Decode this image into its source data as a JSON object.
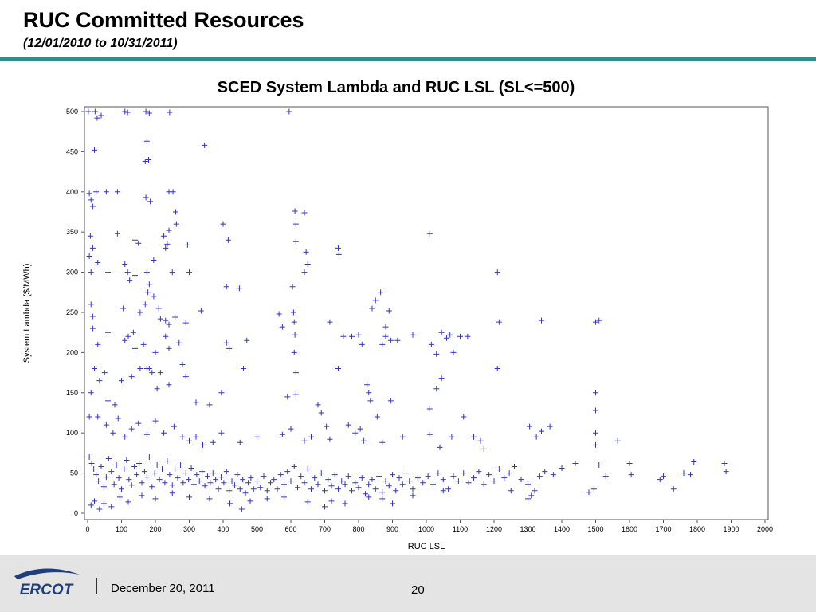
{
  "slide": {
    "title": "RUC Committed Resources",
    "subtitle": "(12/01/2010 to 10/31/2011)"
  },
  "footer": {
    "logo_text": "ERCOT",
    "date": "December 20, 2011",
    "page_number": "20"
  },
  "colors": {
    "title_rule": "#2e8f8c",
    "marker": "#3333cc",
    "footer_bg": "#e4e4e4",
    "logo_blue": "#1f3e7a"
  },
  "chart_data": {
    "type": "scatter",
    "title": "SCED System Lambda and RUC LSL (SL<=500)",
    "xlabel": "RUC LSL",
    "ylabel": "System Lambda ($/MWh)",
    "xlim": [
      0,
      2000
    ],
    "ylim": [
      0,
      500
    ],
    "xticks": [
      0,
      100,
      200,
      300,
      400,
      500,
      600,
      700,
      800,
      900,
      1000,
      1100,
      1200,
      1300,
      1400,
      1500,
      1600,
      1700,
      1800,
      1900,
      2000
    ],
    "yticks": [
      0,
      50,
      100,
      150,
      200,
      250,
      300,
      350,
      400,
      450,
      500
    ],
    "marker": "plus",
    "grid": false,
    "points": [
      [
        2,
        500
      ],
      [
        22,
        500
      ],
      [
        28,
        492
      ],
      [
        40,
        495
      ],
      [
        110,
        500
      ],
      [
        118,
        499
      ],
      [
        172,
        500
      ],
      [
        182,
        498
      ],
      [
        242,
        499
      ],
      [
        595,
        500
      ],
      [
        20,
        452
      ],
      [
        175,
        463
      ],
      [
        170,
        438
      ],
      [
        180,
        440
      ],
      [
        345,
        458
      ],
      [
        5,
        398
      ],
      [
        10,
        390
      ],
      [
        15,
        382
      ],
      [
        25,
        400
      ],
      [
        55,
        400
      ],
      [
        88,
        400
      ],
      [
        172,
        393
      ],
      [
        185,
        388
      ],
      [
        240,
        400
      ],
      [
        252,
        400
      ],
      [
        612,
        376
      ],
      [
        640,
        374
      ],
      [
        615,
        360
      ],
      [
        260,
        375
      ],
      [
        262,
        360
      ],
      [
        400,
        360
      ],
      [
        240,
        352
      ],
      [
        8,
        345
      ],
      [
        15,
        330
      ],
      [
        88,
        348
      ],
      [
        140,
        340
      ],
      [
        150,
        336
      ],
      [
        225,
        345
      ],
      [
        230,
        330
      ],
      [
        295,
        334
      ],
      [
        415,
        340
      ],
      [
        1010,
        348
      ],
      [
        5,
        320
      ],
      [
        10,
        300
      ],
      [
        30,
        312
      ],
      [
        60,
        300
      ],
      [
        110,
        310
      ],
      [
        118,
        300
      ],
      [
        124,
        290
      ],
      [
        140,
        296
      ],
      [
        175,
        300
      ],
      [
        182,
        285
      ],
      [
        195,
        315
      ],
      [
        235,
        335
      ],
      [
        250,
        300
      ],
      [
        300,
        300
      ],
      [
        410,
        282
      ],
      [
        448,
        280
      ],
      [
        605,
        282
      ],
      [
        615,
        338
      ],
      [
        645,
        325
      ],
      [
        650,
        310
      ],
      [
        740,
        330
      ],
      [
        742,
        322
      ],
      [
        640,
        300
      ],
      [
        1210,
        300
      ],
      [
        10,
        260
      ],
      [
        15,
        245
      ],
      [
        105,
        255
      ],
      [
        155,
        250
      ],
      [
        170,
        260
      ],
      [
        178,
        275
      ],
      [
        195,
        270
      ],
      [
        210,
        255
      ],
      [
        215,
        242
      ],
      [
        230,
        240
      ],
      [
        240,
        235
      ],
      [
        258,
        244
      ],
      [
        290,
        237
      ],
      [
        335,
        252
      ],
      [
        565,
        248
      ],
      [
        610,
        238
      ],
      [
        608,
        250
      ],
      [
        612,
        222
      ],
      [
        715,
        238
      ],
      [
        840,
        255
      ],
      [
        850,
        265
      ],
      [
        865,
        275
      ],
      [
        880,
        232
      ],
      [
        890,
        252
      ],
      [
        895,
        215
      ],
      [
        1045,
        225
      ],
      [
        1122,
        220
      ],
      [
        1215,
        238
      ],
      [
        1340,
        240
      ],
      [
        1500,
        238
      ],
      [
        1510,
        240
      ],
      [
        15,
        230
      ],
      [
        30,
        210
      ],
      [
        60,
        225
      ],
      [
        110,
        215
      ],
      [
        120,
        220
      ],
      [
        135,
        225
      ],
      [
        140,
        205
      ],
      [
        165,
        210
      ],
      [
        175,
        180
      ],
      [
        182,
        180
      ],
      [
        200,
        200
      ],
      [
        215,
        175
      ],
      [
        230,
        220
      ],
      [
        240,
        205
      ],
      [
        270,
        212
      ],
      [
        280,
        185
      ],
      [
        410,
        212
      ],
      [
        418,
        205
      ],
      [
        460,
        180
      ],
      [
        470,
        215
      ],
      [
        575,
        232
      ],
      [
        610,
        200
      ],
      [
        615,
        175
      ],
      [
        740,
        180
      ],
      [
        755,
        220
      ],
      [
        780,
        220
      ],
      [
        800,
        222
      ],
      [
        810,
        210
      ],
      [
        870,
        210
      ],
      [
        880,
        220
      ],
      [
        915,
        215
      ],
      [
        960,
        222
      ],
      [
        1015,
        210
      ],
      [
        1030,
        198
      ],
      [
        1045,
        168
      ],
      [
        1060,
        218
      ],
      [
        1070,
        222
      ],
      [
        1080,
        200
      ],
      [
        1100,
        220
      ],
      [
        1210,
        180
      ],
      [
        10,
        150
      ],
      [
        20,
        180
      ],
      [
        35,
        165
      ],
      [
        50,
        175
      ],
      [
        60,
        140
      ],
      [
        80,
        135
      ],
      [
        100,
        165
      ],
      [
        130,
        170
      ],
      [
        155,
        180
      ],
      [
        190,
        175
      ],
      [
        205,
        155
      ],
      [
        240,
        160
      ],
      [
        290,
        170
      ],
      [
        320,
        138
      ],
      [
        360,
        135
      ],
      [
        395,
        150
      ],
      [
        590,
        145
      ],
      [
        615,
        148
      ],
      [
        680,
        135
      ],
      [
        690,
        125
      ],
      [
        825,
        160
      ],
      [
        830,
        150
      ],
      [
        835,
        140
      ],
      [
        855,
        120
      ],
      [
        895,
        140
      ],
      [
        1010,
        130
      ],
      [
        1030,
        155
      ],
      [
        1110,
        120
      ],
      [
        1500,
        150
      ],
      [
        1500,
        128
      ],
      [
        5,
        120
      ],
      [
        30,
        120
      ],
      [
        55,
        110
      ],
      [
        75,
        100
      ],
      [
        90,
        118
      ],
      [
        110,
        95
      ],
      [
        130,
        105
      ],
      [
        150,
        112
      ],
      [
        175,
        98
      ],
      [
        200,
        115
      ],
      [
        225,
        100
      ],
      [
        255,
        108
      ],
      [
        280,
        95
      ],
      [
        300,
        90
      ],
      [
        320,
        95
      ],
      [
        340,
        85
      ],
      [
        370,
        88
      ],
      [
        395,
        100
      ],
      [
        450,
        88
      ],
      [
        500,
        95
      ],
      [
        575,
        98
      ],
      [
        600,
        105
      ],
      [
        640,
        90
      ],
      [
        660,
        95
      ],
      [
        705,
        108
      ],
      [
        715,
        92
      ],
      [
        770,
        110
      ],
      [
        790,
        100
      ],
      [
        805,
        105
      ],
      [
        815,
        90
      ],
      [
        870,
        88
      ],
      [
        930,
        95
      ],
      [
        1010,
        98
      ],
      [
        1040,
        82
      ],
      [
        1075,
        95
      ],
      [
        1140,
        95
      ],
      [
        1160,
        90
      ],
      [
        1170,
        80
      ],
      [
        1305,
        108
      ],
      [
        1325,
        95
      ],
      [
        1340,
        102
      ],
      [
        1365,
        108
      ],
      [
        1500,
        100
      ],
      [
        1500,
        85
      ],
      [
        1565,
        90
      ],
      [
        5,
        70
      ],
      [
        12,
        62
      ],
      [
        18,
        55
      ],
      [
        25,
        48
      ],
      [
        32,
        40
      ],
      [
        40,
        58
      ],
      [
        48,
        33
      ],
      [
        55,
        45
      ],
      [
        62,
        68
      ],
      [
        70,
        52
      ],
      [
        78,
        36
      ],
      [
        85,
        60
      ],
      [
        92,
        44
      ],
      [
        100,
        30
      ],
      [
        108,
        55
      ],
      [
        115,
        66
      ],
      [
        122,
        42
      ],
      [
        130,
        35
      ],
      [
        138,
        58
      ],
      [
        145,
        48
      ],
      [
        152,
        62
      ],
      [
        160,
        38
      ],
      [
        168,
        52
      ],
      [
        175,
        45
      ],
      [
        182,
        70
      ],
      [
        190,
        33
      ],
      [
        198,
        50
      ],
      [
        205,
        60
      ],
      [
        212,
        42
      ],
      [
        220,
        55
      ],
      [
        228,
        38
      ],
      [
        235,
        65
      ],
      [
        242,
        48
      ],
      [
        250,
        35
      ],
      [
        258,
        55
      ],
      [
        266,
        44
      ],
      [
        274,
        60
      ],
      [
        282,
        38
      ],
      [
        290,
        50
      ],
      [
        298,
        42
      ],
      [
        306,
        56
      ],
      [
        314,
        36
      ],
      [
        322,
        48
      ],
      [
        330,
        40
      ],
      [
        338,
        52
      ],
      [
        346,
        34
      ],
      [
        354,
        46
      ],
      [
        362,
        38
      ],
      [
        370,
        50
      ],
      [
        378,
        42
      ],
      [
        386,
        30
      ],
      [
        394,
        45
      ],
      [
        402,
        38
      ],
      [
        410,
        52
      ],
      [
        418,
        28
      ],
      [
        426,
        40
      ],
      [
        434,
        35
      ],
      [
        442,
        48
      ],
      [
        450,
        30
      ],
      [
        458,
        42
      ],
      [
        466,
        25
      ],
      [
        474,
        38
      ],
      [
        482,
        44
      ],
      [
        490,
        30
      ],
      [
        500,
        40
      ],
      [
        510,
        32
      ],
      [
        520,
        46
      ],
      [
        530,
        28
      ],
      [
        540,
        38
      ],
      [
        550,
        42
      ],
      [
        560,
        30
      ],
      [
        570,
        48
      ],
      [
        580,
        36
      ],
      [
        590,
        52
      ],
      [
        600,
        40
      ],
      [
        610,
        58
      ],
      [
        620,
        32
      ],
      [
        630,
        46
      ],
      [
        640,
        38
      ],
      [
        650,
        55
      ],
      [
        660,
        30
      ],
      [
        670,
        44
      ],
      [
        680,
        36
      ],
      [
        690,
        50
      ],
      [
        700,
        28
      ],
      [
        710,
        42
      ],
      [
        720,
        34
      ],
      [
        730,
        48
      ],
      [
        740,
        30
      ],
      [
        750,
        40
      ],
      [
        760,
        36
      ],
      [
        770,
        46
      ],
      [
        780,
        28
      ],
      [
        790,
        38
      ],
      [
        800,
        32
      ],
      [
        810,
        44
      ],
      [
        820,
        24
      ],
      [
        830,
        36
      ],
      [
        840,
        42
      ],
      [
        850,
        30
      ],
      [
        860,
        46
      ],
      [
        870,
        26
      ],
      [
        880,
        40
      ],
      [
        890,
        34
      ],
      [
        900,
        48
      ],
      [
        910,
        28
      ],
      [
        920,
        44
      ],
      [
        930,
        36
      ],
      [
        940,
        50
      ],
      [
        950,
        40
      ],
      [
        960,
        30
      ],
      [
        975,
        44
      ],
      [
        990,
        38
      ],
      [
        1005,
        46
      ],
      [
        1020,
        36
      ],
      [
        1035,
        50
      ],
      [
        1050,
        42
      ],
      [
        1065,
        30
      ],
      [
        1080,
        46
      ],
      [
        1095,
        40
      ],
      [
        1110,
        50
      ],
      [
        1125,
        38
      ],
      [
        1140,
        44
      ],
      [
        1155,
        52
      ],
      [
        1170,
        36
      ],
      [
        1185,
        48
      ],
      [
        1200,
        40
      ],
      [
        1215,
        55
      ],
      [
        1230,
        44
      ],
      [
        1245,
        50
      ],
      [
        1260,
        58
      ],
      [
        1280,
        42
      ],
      [
        1300,
        36
      ],
      [
        1320,
        28
      ],
      [
        1335,
        46
      ],
      [
        1350,
        52
      ],
      [
        1375,
        48
      ],
      [
        1400,
        56
      ],
      [
        1440,
        62
      ],
      [
        1480,
        26
      ],
      [
        1495,
        30
      ],
      [
        1510,
        60
      ],
      [
        1530,
        46
      ],
      [
        1600,
        62
      ],
      [
        1605,
        48
      ],
      [
        1690,
        42
      ],
      [
        1700,
        46
      ],
      [
        1730,
        30
      ],
      [
        1760,
        50
      ],
      [
        1780,
        48
      ],
      [
        1790,
        64
      ],
      [
        1880,
        62
      ],
      [
        1885,
        52
      ],
      [
        10,
        10
      ],
      [
        20,
        15
      ],
      [
        35,
        5
      ],
      [
        48,
        12
      ],
      [
        70,
        8
      ],
      [
        95,
        20
      ],
      [
        120,
        14
      ],
      [
        160,
        22
      ],
      [
        200,
        18
      ],
      [
        250,
        25
      ],
      [
        300,
        20
      ],
      [
        360,
        18
      ],
      [
        420,
        12
      ],
      [
        455,
        5
      ],
      [
        480,
        15
      ],
      [
        530,
        18
      ],
      [
        580,
        20
      ],
      [
        650,
        14
      ],
      [
        700,
        8
      ],
      [
        720,
        15
      ],
      [
        760,
        12
      ],
      [
        830,
        20
      ],
      [
        870,
        18
      ],
      [
        900,
        12
      ],
      [
        960,
        22
      ],
      [
        1050,
        28
      ],
      [
        1250,
        28
      ],
      [
        1300,
        18
      ],
      [
        1310,
        22
      ]
    ]
  }
}
